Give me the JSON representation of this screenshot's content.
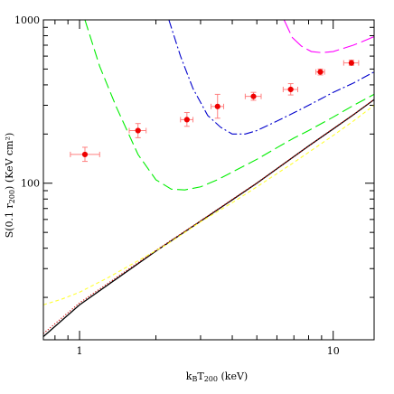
{
  "chart_data": {
    "type": "line",
    "xscale": "log",
    "yscale": "log",
    "xlim": [
      0.72,
      14.5
    ],
    "ylim": [
      11,
      1000
    ],
    "xlabel": {
      "pre": "k",
      "sub1": "B",
      "mid": "T",
      "sub2": "200",
      "post": " (keV)"
    },
    "ylabel": {
      "pre": "S(0.1 r",
      "sub": "200",
      "post": ") (KeV cm²)"
    },
    "x_ticks": [
      {
        "value": 1,
        "label": "1"
      },
      {
        "value": 10,
        "label": "10"
      }
    ],
    "y_ticks": [
      {
        "value": 100,
        "label": "100"
      },
      {
        "value": 1000,
        "label": "1000"
      }
    ],
    "series": [
      {
        "style": "solid",
        "color": "#000000",
        "x": [
          0.72,
          1,
          2,
          3,
          5,
          8,
          10,
          12,
          14.5
        ],
        "y": [
          11.5,
          18.0,
          38.4,
          58.5,
          100,
          169,
          215,
          262,
          325
        ]
      },
      {
        "style": "dotted",
        "color": "#cc0000",
        "x": [
          0.72,
          1,
          2,
          3,
          5,
          8,
          10,
          12,
          14.5
        ],
        "y": [
          12.0,
          18.5,
          38.8,
          58.9,
          100.5,
          169,
          216,
          263,
          326
        ]
      },
      {
        "style": "dash-yellow",
        "color": "#ffff33",
        "x": [
          0.72,
          0.85,
          1,
          1.3,
          1.7,
          2.2,
          3,
          4,
          5,
          7,
          10,
          12,
          14.5
        ],
        "y": [
          18,
          19.5,
          21.5,
          26.5,
          33.5,
          42,
          58,
          76,
          95,
          134,
          196,
          240,
          300
        ]
      },
      {
        "style": "dashed",
        "color": "#00ee00",
        "x": [
          1.05,
          1.2,
          1.4,
          1.7,
          2.0,
          2.3,
          2.6,
          3.0,
          3.5,
          4.0,
          5.0,
          6.0,
          7.0,
          8.0,
          10.0,
          12.0,
          14.5
        ],
        "y": [
          1000,
          520,
          290,
          150,
          105,
          92,
          91,
          95,
          105,
          117,
          140,
          165,
          189,
          210,
          254,
          299,
          350
        ]
      },
      {
        "style": "dashdot",
        "color": "#0000cc",
        "x": [
          2.25,
          2.5,
          2.8,
          3.2,
          3.6,
          4.0,
          4.5,
          5.0,
          6.0,
          7.0,
          8.0,
          9.0,
          10.0,
          12.0,
          14.5
        ],
        "y": [
          1000,
          600,
          380,
          260,
          220,
          200,
          200,
          210,
          240,
          270,
          300,
          330,
          360,
          410,
          480
        ]
      },
      {
        "style": "longdash",
        "color": "#ff00ff",
        "x": [
          6.4,
          6.9,
          7.5,
          8.2,
          9.0,
          10.0,
          11.0,
          12.0,
          13.0,
          14.5
        ],
        "y": [
          1000,
          780,
          690,
          640,
          630,
          640,
          670,
          700,
          735,
          790
        ]
      }
    ],
    "points": {
      "color": "#ee0000",
      "data": [
        {
          "x": 1.05,
          "y": 150,
          "xerr": [
            0.13,
            0.15
          ],
          "yerr": [
            14,
            16
          ]
        },
        {
          "x": 1.7,
          "y": 210,
          "xerr": [
            0.13,
            0.13
          ],
          "yerr": [
            20,
            22
          ]
        },
        {
          "x": 2.65,
          "y": 245,
          "xerr": [
            0.15,
            0.15
          ],
          "yerr": [
            22,
            26
          ]
        },
        {
          "x": 3.5,
          "y": 295,
          "xerr": [
            0.2,
            0.2
          ],
          "yerr": [
            45,
            55
          ]
        },
        {
          "x": 4.85,
          "y": 340,
          "xerr": [
            0.35,
            0.35
          ],
          "yerr": [
            18,
            20
          ]
        },
        {
          "x": 6.8,
          "y": 375,
          "xerr": [
            0.45,
            0.45
          ],
          "yerr": [
            28,
            32
          ]
        },
        {
          "x": 8.9,
          "y": 480,
          "xerr": [
            0.35,
            0.35
          ],
          "yerr": [
            20,
            20
          ]
        },
        {
          "x": 11.8,
          "y": 545,
          "xerr": [
            0.8,
            0.8
          ],
          "yerr": [
            18,
            22
          ]
        }
      ]
    }
  }
}
